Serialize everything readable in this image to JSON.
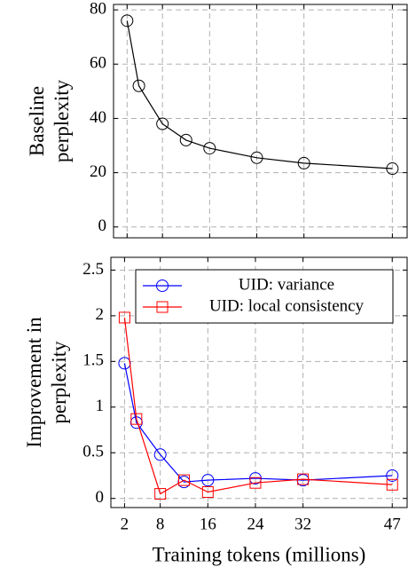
{
  "chart_data": [
    {
      "type": "line",
      "ylabel": [
        "Baseline",
        "perplexity"
      ],
      "x": [
        2,
        4,
        8,
        12,
        16,
        24,
        32,
        47
      ],
      "series": [
        {
          "color": "#000000",
          "marker": "circle",
          "values": [
            76,
            52,
            38,
            32,
            29,
            25.5,
            23.5,
            21.5
          ]
        }
      ],
      "xlim": [
        -0.3,
        49.5
      ],
      "xticks": [
        2,
        8,
        16,
        24,
        32,
        47
      ],
      "ylim": [
        -4,
        82
      ],
      "yticks": [
        0,
        20,
        40,
        60,
        80
      ],
      "grid": true
    },
    {
      "type": "line",
      "ylabel": [
        "Improvement in",
        "perplexity"
      ],
      "xlabel": "Training tokens (millions)",
      "x": [
        2,
        4,
        8,
        12,
        16,
        24,
        32,
        47
      ],
      "series": [
        {
          "name": "UID: variance",
          "color": "#0000ff",
          "marker": "circle",
          "values": [
            1.48,
            0.83,
            0.48,
            0.18,
            0.2,
            0.22,
            0.2,
            0.25
          ]
        },
        {
          "name": "UID: local consistency",
          "color": "#ff0000",
          "marker": "square",
          "values": [
            1.98,
            0.87,
            0.05,
            0.2,
            0.07,
            0.17,
            0.21,
            0.15
          ]
        }
      ],
      "xlim": [
        -0.3,
        49.5
      ],
      "xticks": [
        2,
        8,
        16,
        24,
        32,
        47
      ],
      "ylim": [
        -0.1,
        2.64
      ],
      "yticks": [
        0,
        0.5,
        1,
        1.5,
        2,
        2.5
      ],
      "grid": true,
      "legend": "top-right"
    }
  ]
}
